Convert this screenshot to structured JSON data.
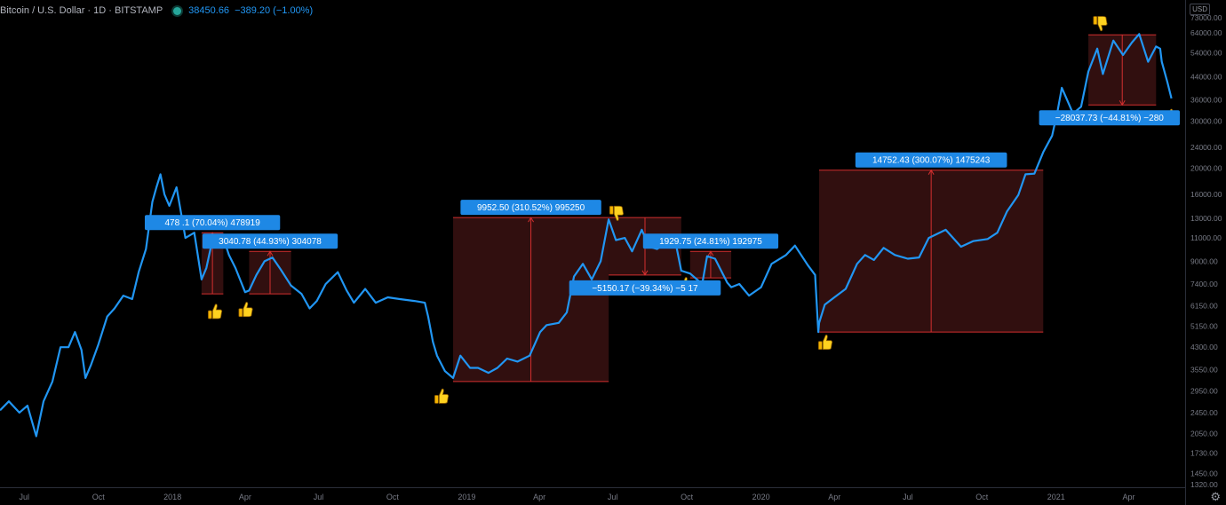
{
  "header": {
    "symbol": "Bitcoin / U.S. Dollar · 1D · BITSTAMP",
    "price": "38450.66",
    "change": "−389.20 (−1.00%)"
  },
  "currency_button": "USD",
  "colors": {
    "background": "#000000",
    "line": "#2196f3",
    "box_fill": "#3a1212",
    "box_stroke": "#d32f2f",
    "label_bg": "#1e88e5",
    "axis_text": "#787b86"
  },
  "icons": [
    "thumbs-up-icon",
    "thumbs-down-icon",
    "settings-gear-icon"
  ],
  "chart_data": {
    "type": "line",
    "title": "",
    "xlabel": "",
    "ylabel": "",
    "y_scale": "log",
    "ylim": [
      1320,
      73000
    ],
    "xlim": [
      "2017-06-01",
      "2021-06-10"
    ],
    "grid": false,
    "x_ticks": [
      {
        "date": "2017-07-01",
        "label": "Jul"
      },
      {
        "date": "2017-10-01",
        "label": "Oct"
      },
      {
        "date": "2018-01-01",
        "label": "2018"
      },
      {
        "date": "2018-04-01",
        "label": "Apr"
      },
      {
        "date": "2018-07-01",
        "label": "Jul"
      },
      {
        "date": "2018-10-01",
        "label": "Oct"
      },
      {
        "date": "2019-01-01",
        "label": "2019"
      },
      {
        "date": "2019-04-01",
        "label": "Apr"
      },
      {
        "date": "2019-07-01",
        "label": "Jul"
      },
      {
        "date": "2019-10-01",
        "label": "Oct"
      },
      {
        "date": "2020-01-01",
        "label": "2020"
      },
      {
        "date": "2020-04-01",
        "label": "Apr"
      },
      {
        "date": "2020-07-01",
        "label": "Jul"
      },
      {
        "date": "2020-10-01",
        "label": "Oct"
      },
      {
        "date": "2021-01-01",
        "label": "2021"
      },
      {
        "date": "2021-04-01",
        "label": "Apr"
      }
    ],
    "y_ticks": [
      {
        "value": 1320,
        "label": "1320.00"
      },
      {
        "value": 1450,
        "label": "1450.00"
      },
      {
        "value": 1730,
        "label": "1730.00"
      },
      {
        "value": 2050,
        "label": "2050.00"
      },
      {
        "value": 2450,
        "label": "2450.00"
      },
      {
        "value": 2950,
        "label": "2950.00"
      },
      {
        "value": 3550,
        "label": "3550.00"
      },
      {
        "value": 4300,
        "label": "4300.00"
      },
      {
        "value": 5150,
        "label": "5150.00"
      },
      {
        "value": 6150,
        "label": "6150.00"
      },
      {
        "value": 7400,
        "label": "7400.00"
      },
      {
        "value": 9000,
        "label": "9000.00"
      },
      {
        "value": 11000,
        "label": "11000.00"
      },
      {
        "value": 13000,
        "label": "13000.00"
      },
      {
        "value": 16000,
        "label": "16000.00"
      },
      {
        "value": 20000,
        "label": "20000.00"
      },
      {
        "value": 24000,
        "label": "24000.00"
      },
      {
        "value": 30000,
        "label": "30000.00"
      },
      {
        "value": 36000,
        "label": "36000.00"
      },
      {
        "value": 44000,
        "label": "44000.00"
      },
      {
        "value": 54000,
        "label": "54000.00"
      },
      {
        "value": 64000,
        "label": "64000.00"
      },
      {
        "value": 73000,
        "label": "73000.00"
      }
    ],
    "series": [
      {
        "x": [
          "2017-06-01",
          "2017-06-12",
          "2017-06-25",
          "2017-07-05",
          "2017-07-16",
          "2017-07-25",
          "2017-08-05",
          "2017-08-15",
          "2017-08-25",
          "2017-09-02",
          "2017-09-10",
          "2017-09-15",
          "2017-09-22",
          "2017-10-01",
          "2017-10-12",
          "2017-10-21",
          "2017-11-01",
          "2017-11-12",
          "2017-11-20",
          "2017-11-29",
          "2017-12-07",
          "2017-12-12",
          "2017-12-17",
          "2017-12-22",
          "2017-12-28",
          "2018-01-06",
          "2018-01-10",
          "2018-01-17",
          "2018-01-28",
          "2018-02-06",
          "2018-02-12",
          "2018-02-20",
          "2018-03-05",
          "2018-03-12",
          "2018-03-20",
          "2018-04-01",
          "2018-04-06",
          "2018-04-15",
          "2018-04-25",
          "2018-05-05",
          "2018-05-15",
          "2018-05-28",
          "2018-06-10",
          "2018-06-20",
          "2018-06-29",
          "2018-07-10",
          "2018-07-25",
          "2018-08-05",
          "2018-08-14",
          "2018-08-28",
          "2018-09-10",
          "2018-09-25",
          "2018-10-10",
          "2018-10-28",
          "2018-11-10",
          "2018-11-14",
          "2018-11-20",
          "2018-11-25",
          "2018-12-05",
          "2018-12-15",
          "2018-12-24",
          "2019-01-05",
          "2019-01-15",
          "2019-01-28",
          "2019-02-08",
          "2019-02-20",
          "2019-03-05",
          "2019-03-20",
          "2019-04-02",
          "2019-04-10",
          "2019-04-25",
          "2019-05-05",
          "2019-05-14",
          "2019-05-25",
          "2019-06-05",
          "2019-06-16",
          "2019-06-26",
          "2019-07-05",
          "2019-07-16",
          "2019-07-25",
          "2019-08-06",
          "2019-08-15",
          "2019-08-25",
          "2019-09-05",
          "2019-09-18",
          "2019-09-24",
          "2019-10-05",
          "2019-10-20",
          "2019-10-26",
          "2019-11-05",
          "2019-11-20",
          "2019-11-25",
          "2019-12-05",
          "2019-12-17",
          "2020-01-01",
          "2020-01-14",
          "2020-02-01",
          "2020-02-12",
          "2020-02-28",
          "2020-03-08",
          "2020-03-12",
          "2020-03-13",
          "2020-03-20",
          "2020-04-01",
          "2020-04-15",
          "2020-04-29",
          "2020-05-09",
          "2020-05-20",
          "2020-06-01",
          "2020-06-15",
          "2020-07-01",
          "2020-07-15",
          "2020-07-27",
          "2020-08-17",
          "2020-09-05",
          "2020-09-20",
          "2020-10-08",
          "2020-10-20",
          "2020-11-01",
          "2020-11-15",
          "2020-11-24",
          "2020-12-05",
          "2020-12-16",
          "2020-12-27",
          "2021-01-03",
          "2021-01-08",
          "2021-01-22",
          "2021-02-01",
          "2021-02-10",
          "2021-02-21",
          "2021-02-28",
          "2021-03-13",
          "2021-03-25",
          "2021-04-05",
          "2021-04-14",
          "2021-04-25",
          "2021-05-05",
          "2021-05-10",
          "2021-05-12",
          "2021-05-19",
          "2021-05-24"
        ],
        "y": [
          2500,
          2700,
          2450,
          2600,
          2000,
          2700,
          3200,
          4300,
          4300,
          4900,
          4200,
          3300,
          3700,
          4400,
          5600,
          6000,
          6700,
          6500,
          8200,
          10000,
          15000,
          17000,
          19000,
          16000,
          14500,
          17000,
          14500,
          11000,
          11500,
          7700,
          8500,
          11000,
          11000,
          9500,
          8500,
          6900,
          7000,
          8000,
          9000,
          9300,
          8400,
          7300,
          6800,
          6000,
          6400,
          7400,
          8200,
          7000,
          6300,
          7100,
          6300,
          6600,
          6500,
          6400,
          6300,
          5600,
          4500,
          4000,
          3500,
          3300,
          4000,
          3600,
          3600,
          3450,
          3600,
          3900,
          3800,
          4000,
          4900,
          5200,
          5300,
          5800,
          7900,
          8800,
          7700,
          9000,
          12900,
          10800,
          11000,
          9800,
          11800,
          10200,
          10000,
          10500,
          10200,
          8300,
          8100,
          7400,
          9400,
          9200,
          7500,
          7200,
          7400,
          6700,
          7200,
          8800,
          9500,
          10300,
          8700,
          8000,
          4900,
          5300,
          6200,
          6600,
          7100,
          8800,
          9500,
          9100,
          10100,
          9500,
          9200,
          9300,
          11000,
          11800,
          10200,
          10700,
          10900,
          11500,
          13800,
          15900,
          19000,
          19100,
          23000,
          26500,
          33000,
          40000,
          32000,
          34000,
          46000,
          56000,
          45000,
          60000,
          53000,
          59000,
          63500,
          50000,
          57000,
          56000,
          50000,
          42000,
          36500
        ]
      }
    ],
    "annotations": [
      {
        "type": "range-up",
        "label": "478 .1  (70.04%) 478919",
        "x_start": "2018-02-06",
        "x_end": "2018-03-05",
        "y_low": 6800,
        "y_high": 11500
      },
      {
        "type": "range-up",
        "label": "3040.78 (44.93%) 304078",
        "x_start": "2018-04-06",
        "x_end": "2018-05-28",
        "y_low": 6800,
        "y_high": 9800
      },
      {
        "type": "range-up",
        "label": "9952.50 (310.52%) 995250",
        "x_start": "2018-12-15",
        "x_end": "2019-06-26",
        "y_low": 3200,
        "y_high": 13100
      },
      {
        "type": "range-down",
        "label": "−5150.17 (−39.34%) −5   17",
        "x_start": "2019-06-26",
        "x_end": "2019-09-24",
        "y_low": 8000,
        "y_high": 13100
      },
      {
        "type": "range-up",
        "label": "1929.75 (24.81%) 192975",
        "x_start": "2019-10-05",
        "x_end": "2019-11-25",
        "y_low": 7800,
        "y_high": 9800
      },
      {
        "type": "range-up",
        "label": "14752.43 (300.07%) 1475243",
        "x_start": "2020-03-13",
        "x_end": "2020-12-16",
        "y_low": 4900,
        "y_high": 19700
      },
      {
        "type": "range-down",
        "label": "−28037.73 (−44.81%) −280",
        "x_start": "2021-02-10",
        "x_end": "2021-05-05",
        "y_low": 34500,
        "y_high": 63000
      }
    ],
    "markers": [
      {
        "icon": "thumbs-up-icon",
        "date": "2018-02-22",
        "price": 5800
      },
      {
        "icon": "thumbs-up-icon",
        "date": "2018-04-01",
        "price": 5900
      },
      {
        "icon": "thumbs-up-icon",
        "date": "2018-11-30",
        "price": 2800
      },
      {
        "icon": "thumbs-down-icon",
        "date": "2019-07-05",
        "price": 13700
      },
      {
        "icon": "thumbs-up-icon",
        "date": "2019-09-28",
        "price": 7300
      },
      {
        "icon": "thumbs-up-icon",
        "date": "2020-03-20",
        "price": 4450
      },
      {
        "icon": "thumbs-down-icon",
        "date": "2021-02-24",
        "price": 70000
      },
      {
        "icon": "thumbs-up-icon",
        "date": "2021-05-22",
        "price": 31000
      }
    ]
  }
}
